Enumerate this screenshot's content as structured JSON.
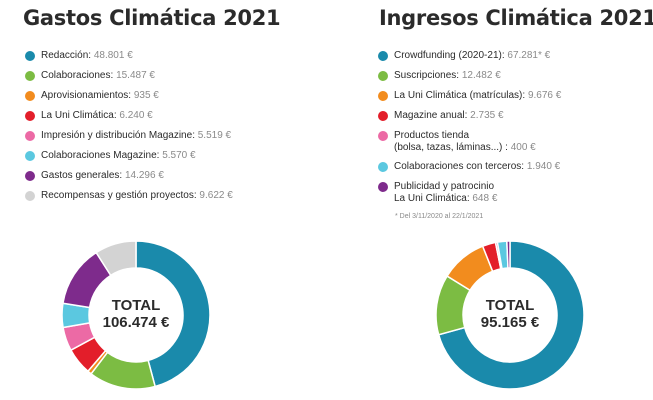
{
  "chart_data": [
    {
      "type": "pie",
      "title": "Gastos Climática 2021",
      "total_label": "TOTAL",
      "total_value": "106.474 €",
      "slices": [
        {
          "label": "Redacción",
          "value_text": "48.801 €",
          "value": 48801,
          "color": "#1a8aab"
        },
        {
          "label": "Colaboraciones",
          "value_text": "15.487 €",
          "value": 15487,
          "color": "#7cbc43"
        },
        {
          "label": "Aprovisionamientos",
          "value_text": "935 €",
          "value": 935,
          "color": "#f28c1e"
        },
        {
          "label": "La Uni Climática",
          "value_text": "6.240 €",
          "value": 6240,
          "color": "#e31e2a"
        },
        {
          "label": "Impresión y distribución Magazine",
          "value_text": "5.519 €",
          "value": 5519,
          "color": "#ec6aa5"
        },
        {
          "label": "Colaboraciones Magazine",
          "value_text": "5.570 €",
          "value": 5570,
          "color": "#5bc8e0"
        },
        {
          "label": "Gastos generales",
          "value_text": "14.296 €",
          "value": 14296,
          "color": "#7e2b8c"
        },
        {
          "label": "Recompensas y gestión proyectos",
          "value_text": "9.622 €",
          "value": 9622,
          "color": "#d3d3d3"
        }
      ]
    },
    {
      "type": "pie",
      "title": "Ingresos Climática 2021",
      "total_label": "TOTAL",
      "total_value": "95.165 €",
      "footnote": "* Del 3/11/2020 al 22/1/2021",
      "slices": [
        {
          "label": "Crowdfunding (2020-21)",
          "value_text": "67.281* €",
          "value": 67281,
          "color": "#1a8aab"
        },
        {
          "label": "Suscripciones",
          "value_text": "12.482 €",
          "value": 12482,
          "color": "#7cbc43"
        },
        {
          "label": "La Uni Climática (matrículas)",
          "value_text": "9.676 €",
          "value": 9676,
          "color": "#f28c1e"
        },
        {
          "label": "Magazine anual",
          "value_text": "2.735 €",
          "value": 2735,
          "color": "#e31e2a"
        },
        {
          "label": "Productos tienda",
          "label2": "(bolsa, tazas, láminas...)",
          "value_text": "400 €",
          "value": 400,
          "color": "#ec6aa5"
        },
        {
          "label": "Colaboraciones con terceros",
          "value_text": "1.940 €",
          "value": 1940,
          "color": "#5bc8e0"
        },
        {
          "label": "Publicidad y patrocinio",
          "label2": "La Uni Climática",
          "value_text": "648 €",
          "value": 648,
          "color": "#7e2b8c"
        }
      ]
    }
  ]
}
